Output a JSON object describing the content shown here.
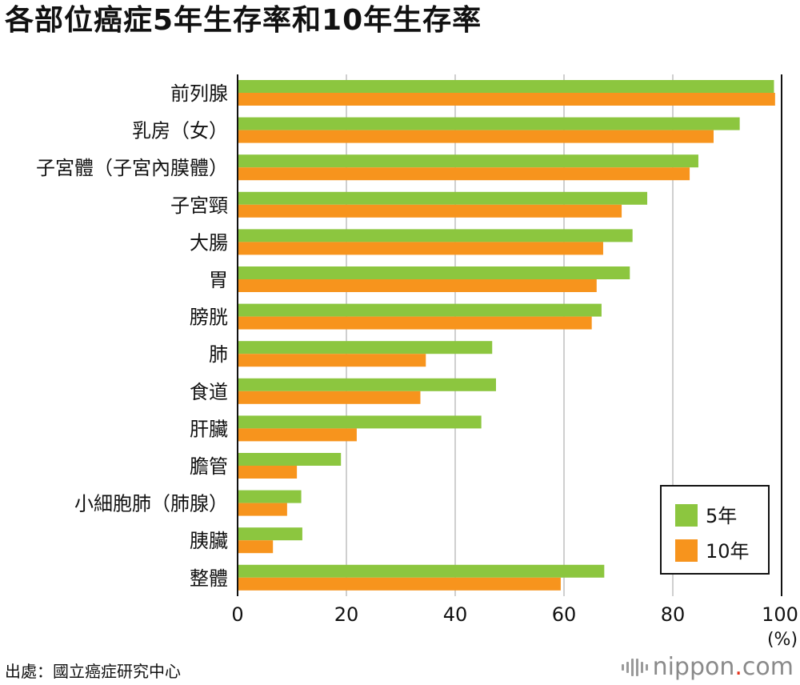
{
  "chart_data": {
    "type": "bar",
    "orientation": "horizontal",
    "title": "各部位癌症5年生存率和10年生存率",
    "categories": [
      "前列腺",
      "乳房（女）",
      "子宮體（子宮內膜體）",
      "子宮頸",
      "大腸",
      "胃",
      "膀胱",
      "肺",
      "食道",
      "肝臟",
      "膽管",
      "小細胞肺（肺腺）",
      "胰臟",
      "整體"
    ],
    "series": [
      {
        "name": "5年",
        "color": "#8cc63f",
        "values": [
          98.6,
          92.3,
          84.7,
          75.3,
          72.6,
          72.1,
          66.9,
          46.8,
          47.5,
          44.8,
          19.0,
          11.7,
          11.9,
          67.4
        ]
      },
      {
        "name": "10年",
        "color": "#f7941d",
        "values": [
          98.8,
          87.5,
          83.1,
          70.6,
          67.2,
          66.0,
          65.1,
          34.6,
          33.6,
          21.9,
          10.9,
          9.1,
          6.5,
          59.4
        ]
      }
    ],
    "xlim": [
      0,
      100
    ],
    "xticks": [
      0,
      20,
      40,
      60,
      80,
      100
    ],
    "xunit": "(%)",
    "grid": true,
    "legend_position": "bottom-right"
  },
  "footer": {
    "source": "出處：國立癌症研究中心",
    "brand_name": "nippon",
    "brand_dot": ".",
    "brand_tld": "com"
  }
}
